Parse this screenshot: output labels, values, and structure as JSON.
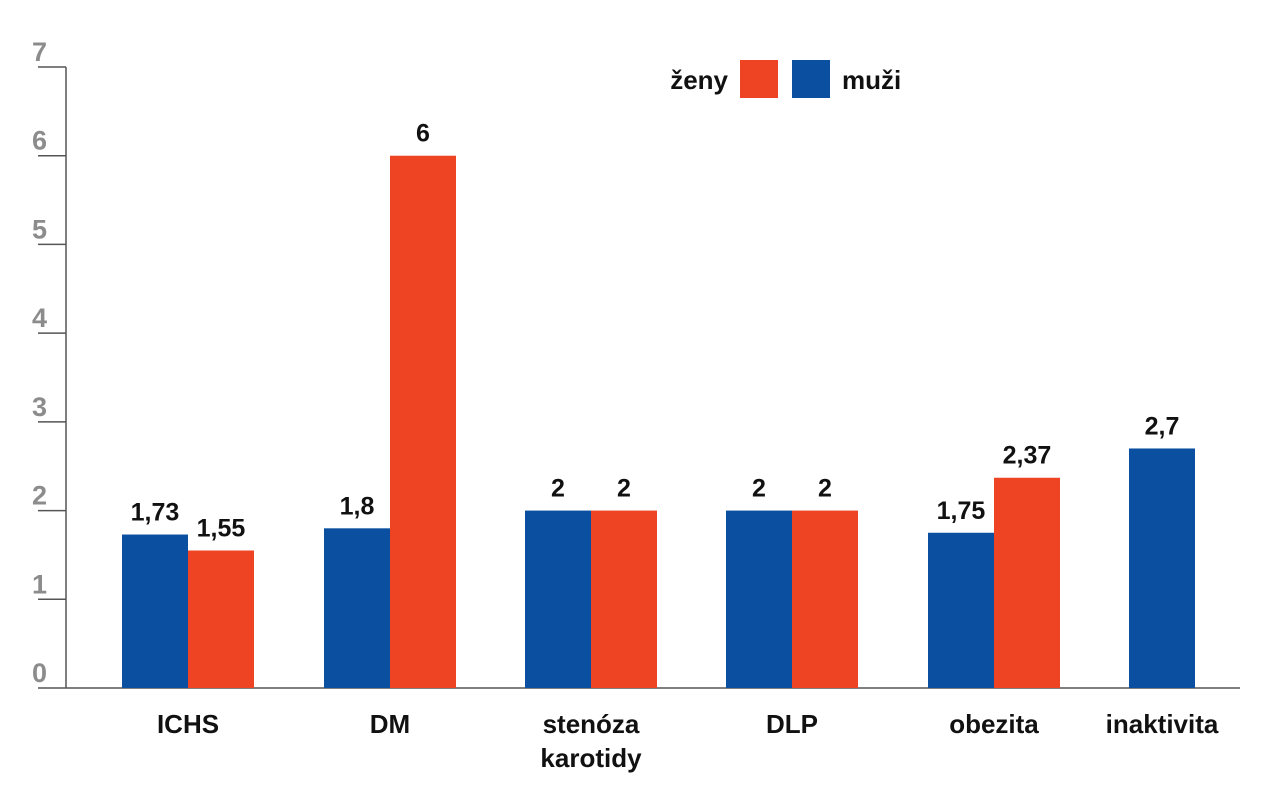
{
  "chart_data": {
    "type": "bar",
    "categories": [
      "ICHS",
      "DM",
      "stenóza karotidy",
      "DLP",
      "obezita",
      "inaktivita"
    ],
    "category_lines": [
      [
        "ICHS"
      ],
      [
        "DM"
      ],
      [
        "stenóza",
        "karotidy"
      ],
      [
        "DLP"
      ],
      [
        "obezita"
      ],
      [
        "inaktivita"
      ]
    ],
    "series": [
      {
        "name": "muži",
        "color": "#0a4fa0",
        "values": [
          1.73,
          1.8,
          2,
          2,
          1.75,
          2.7
        ],
        "labels": [
          "1,73",
          "1,8",
          "2",
          "2",
          "1,75",
          "2,7"
        ]
      },
      {
        "name": "ženy",
        "color": "#ee4423",
        "values": [
          1.55,
          6,
          2,
          2,
          2.37,
          null
        ],
        "labels": [
          "1,55",
          "6",
          "2",
          "2",
          "2,37",
          ""
        ]
      }
    ],
    "ylim": [
      0,
      7
    ],
    "yticks": [
      "0",
      "1",
      "2",
      "3",
      "4",
      "5",
      "6",
      "7"
    ],
    "legend": {
      "position": "top-right",
      "order": [
        "ženy",
        "muži"
      ]
    },
    "grid": false
  }
}
